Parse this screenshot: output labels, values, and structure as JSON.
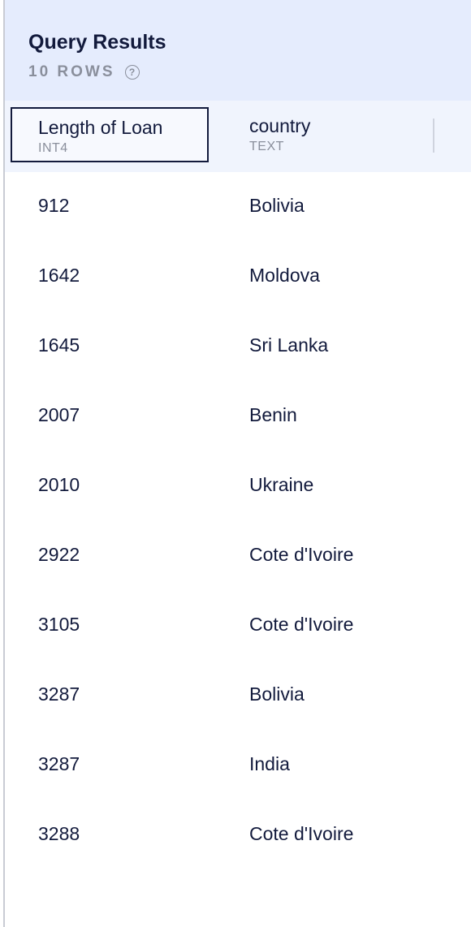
{
  "panel": {
    "title": "Query Results",
    "row_count": "10 ROWS",
    "help_icon": "?"
  },
  "columns": [
    {
      "name": "Length of Loan",
      "type": "INT4"
    },
    {
      "name": "country",
      "type": "TEXT"
    }
  ],
  "rows": [
    [
      "912",
      "Bolivia"
    ],
    [
      "1642",
      "Moldova"
    ],
    [
      "1645",
      "Sri Lanka"
    ],
    [
      "2007",
      "Benin"
    ],
    [
      "2010",
      "Ukraine"
    ],
    [
      "2922",
      "Cote d'Ivoire"
    ],
    [
      "3105",
      "Cote d'Ivoire"
    ],
    [
      "3287",
      "Bolivia"
    ],
    [
      "3287",
      "India"
    ],
    [
      "3288",
      "Cote d'Ivoire"
    ]
  ],
  "colors": {
    "header_bg": "#e5ecfd",
    "column_header_bg": "#f0f4fd",
    "text": "#121a3c",
    "muted": "#8a8f9c"
  }
}
